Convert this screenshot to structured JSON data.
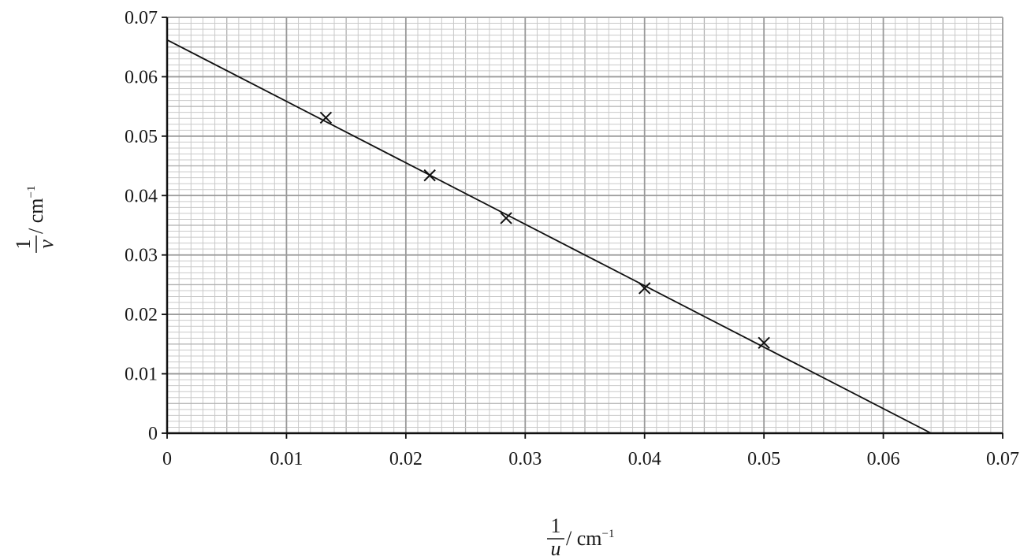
{
  "chart_data": {
    "type": "scatter",
    "xlabel": {
      "numerator": "1",
      "denominator": "u",
      "unit": " / cm",
      "exponent": "−1"
    },
    "ylabel": {
      "numerator": "1",
      "denominator": "v",
      "unit": " / cm",
      "exponent": "−1"
    },
    "xlim": [
      0,
      0.07
    ],
    "ylim": [
      0,
      0.07
    ],
    "x_ticks": [
      0,
      0.01,
      0.02,
      0.03,
      0.04,
      0.05,
      0.06,
      0.07
    ],
    "x_tick_labels": [
      "0",
      "0.01",
      "0.02",
      "0.03",
      "0.04",
      "0.05",
      "0.06",
      "0.07"
    ],
    "y_ticks": [
      0,
      0.01,
      0.02,
      0.03,
      0.04,
      0.05,
      0.06,
      0.07
    ],
    "y_tick_labels": [
      "0",
      "0.01",
      "0.02",
      "0.03",
      "0.04",
      "0.05",
      "0.06",
      "0.07"
    ],
    "grid": true,
    "marker": "x",
    "points": [
      {
        "x": 0.0133,
        "y": 0.0531
      },
      {
        "x": 0.022,
        "y": 0.0434
      },
      {
        "x": 0.0284,
        "y": 0.0362
      },
      {
        "x": 0.04,
        "y": 0.0244
      },
      {
        "x": 0.05,
        "y": 0.0152
      }
    ],
    "best_fit_line": {
      "x1": 0,
      "y1": 0.0662,
      "x2": 0.064,
      "y2": 0
    }
  }
}
